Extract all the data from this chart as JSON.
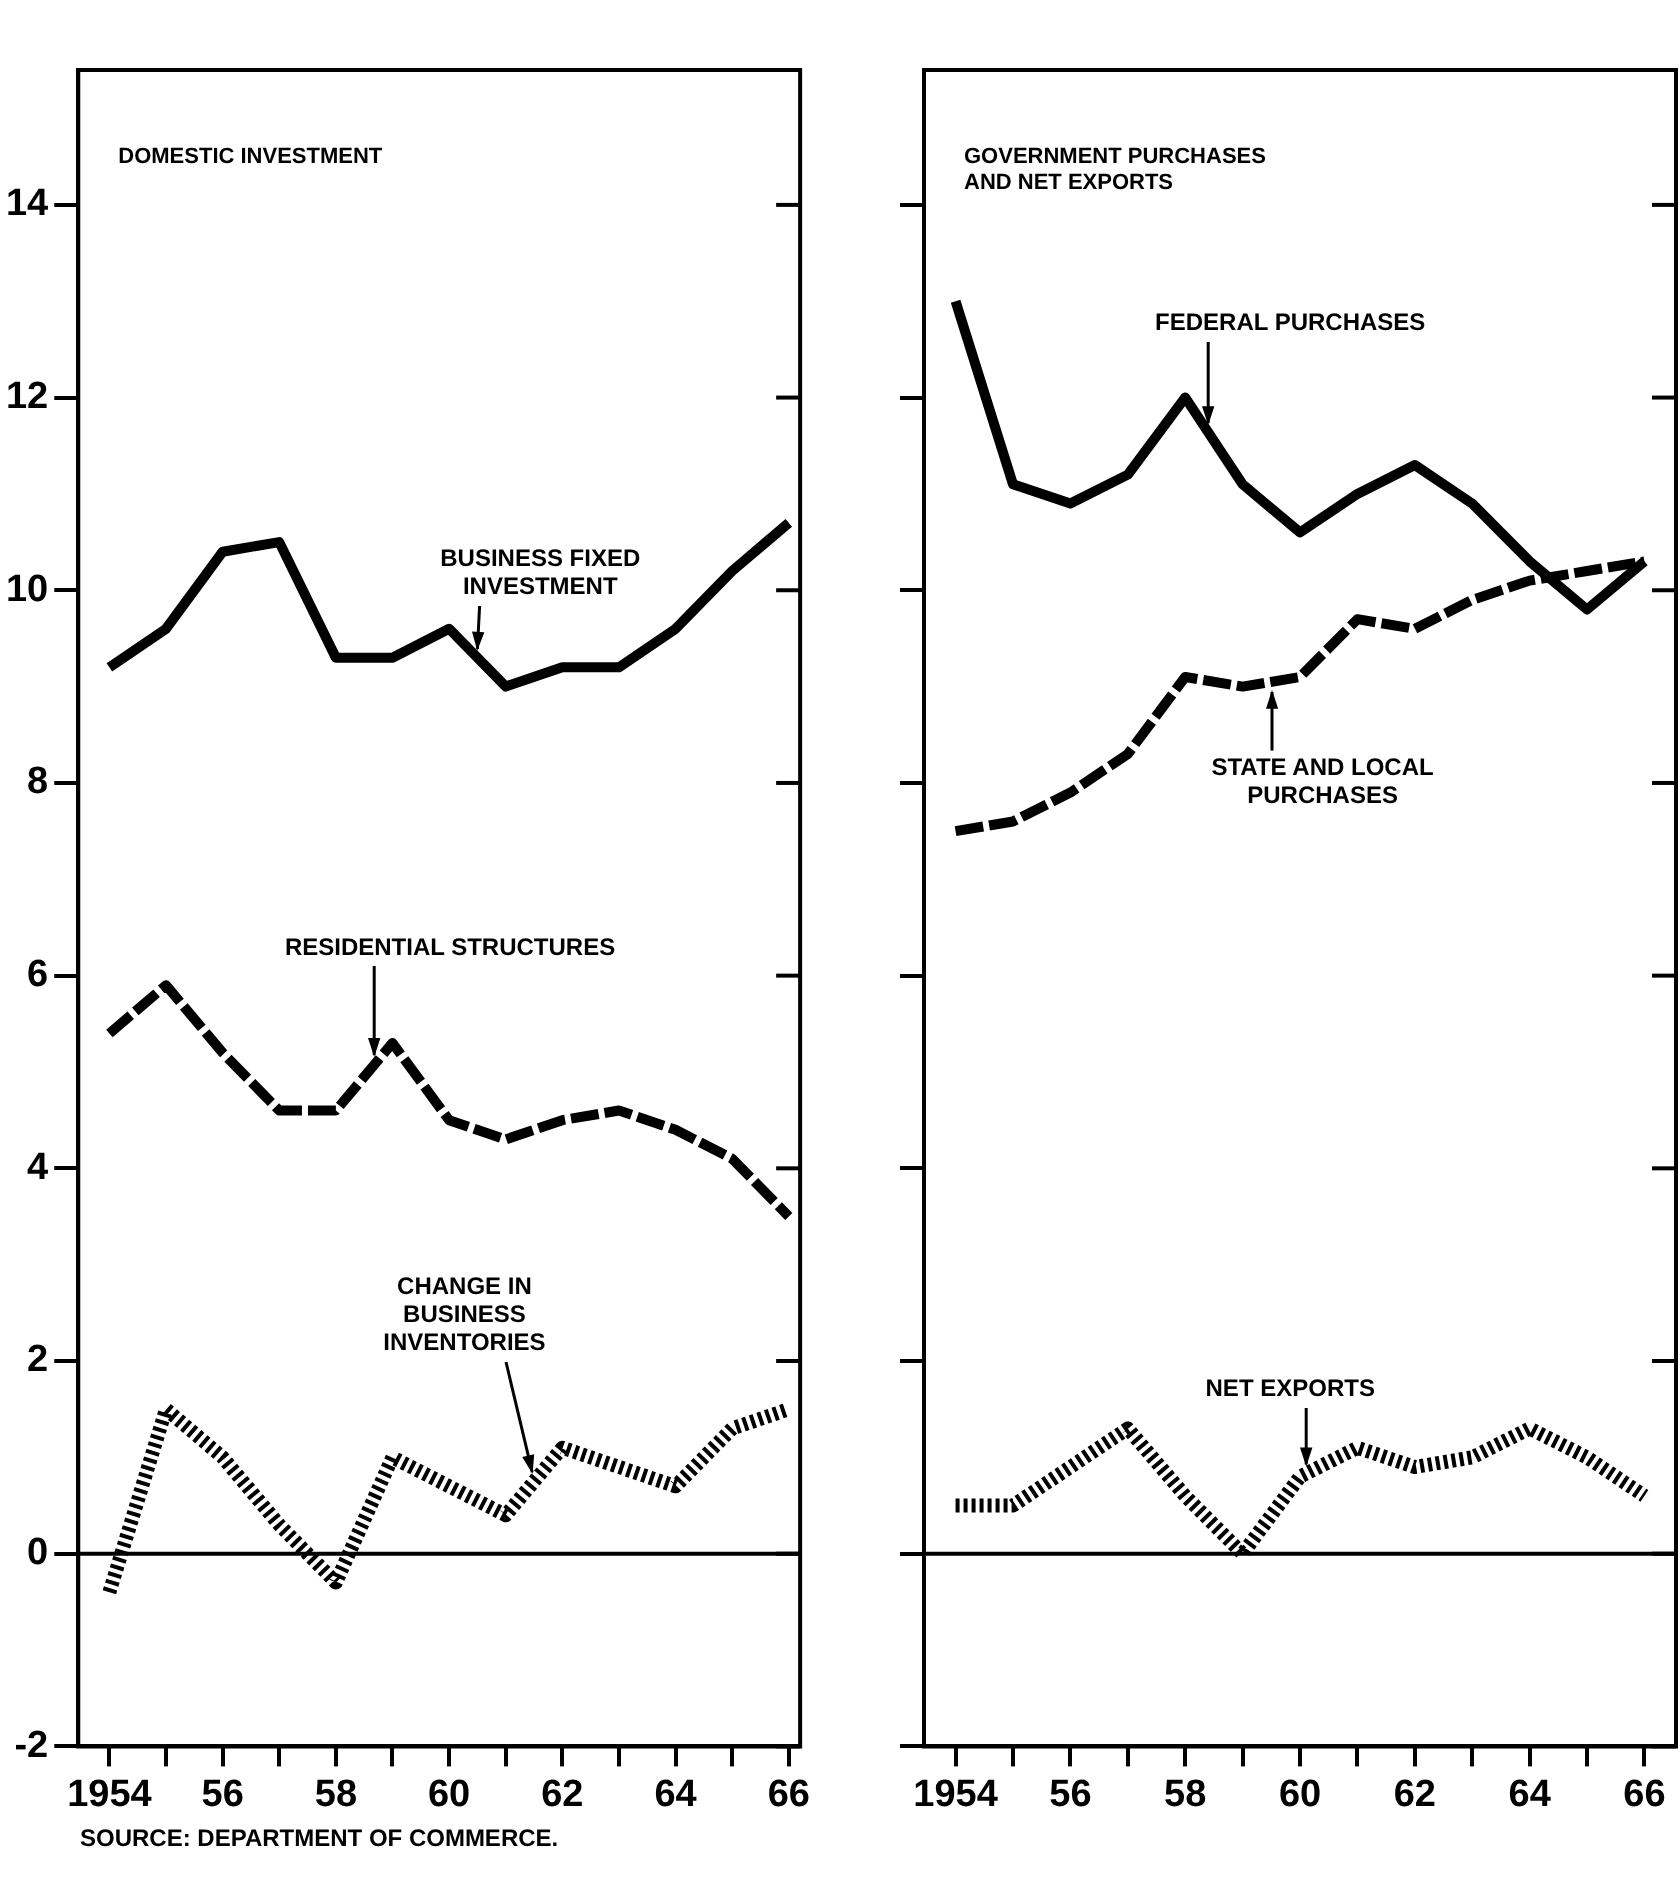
{
  "chart_data": [
    {
      "type": "line",
      "title": "DOMESTIC INVESTMENT",
      "x": [
        1954,
        1955,
        1956,
        1957,
        1958,
        1959,
        1960,
        1961,
        1962,
        1963,
        1964,
        1965,
        1966
      ],
      "series": [
        {
          "name": "BUSINESS FIXED INVESTMENT",
          "color": "#000000",
          "line_style": "solid",
          "values": [
            9.2,
            9.6,
            10.4,
            10.5,
            9.3,
            9.3,
            9.6,
            9.0,
            9.2,
            9.2,
            9.6,
            10.2,
            10.7
          ]
        },
        {
          "name": "RESIDENTIAL STRUCTURES",
          "color": "#000000",
          "line_style": "dashed",
          "values": [
            5.4,
            5.9,
            5.2,
            4.6,
            4.6,
            5.3,
            4.5,
            4.3,
            4.5,
            4.6,
            4.4,
            4.1,
            3.5
          ]
        },
        {
          "name": "CHANGE IN BUSINESS INVENTORIES",
          "color": "#000000",
          "line_style": "dotted",
          "values": [
            -0.4,
            1.5,
            1.0,
            0.3,
            -0.3,
            1.0,
            0.7,
            0.4,
            1.1,
            0.9,
            0.7,
            1.3,
            1.5
          ]
        }
      ],
      "xlim": [
        1953.45,
        1966.2
      ],
      "xticks": [
        {
          "value": 1954,
          "label": "1954"
        },
        {
          "value": 1955,
          "label": null
        },
        {
          "value": 1956,
          "label": "56"
        },
        {
          "value": 1957,
          "label": null
        },
        {
          "value": 1958,
          "label": "58"
        },
        {
          "value": 1959,
          "label": null
        },
        {
          "value": 1960,
          "label": "60"
        },
        {
          "value": 1961,
          "label": null
        },
        {
          "value": 1962,
          "label": "62"
        },
        {
          "value": 1963,
          "label": null
        },
        {
          "value": 1964,
          "label": "64"
        },
        {
          "value": 1965,
          "label": null
        },
        {
          "value": 1966,
          "label": "66"
        }
      ],
      "ylim": [
        -2,
        15.4
      ],
      "yticks": [
        -2,
        0,
        2,
        4,
        6,
        8,
        10,
        12,
        14
      ],
      "ref_lines": [
        {
          "axis": "y",
          "value": 0,
          "color": "#000000"
        }
      ],
      "marker": "none",
      "grid": false,
      "legend": false,
      "annotations": [
        "SOURCE: DEPARTMENT OF COMMERCE."
      ]
    },
    {
      "type": "line",
      "title": "GOVERNMENT PURCHASES AND NET EXPORTS",
      "x": [
        1954,
        1955,
        1956,
        1957,
        1958,
        1959,
        1960,
        1961,
        1962,
        1963,
        1964,
        1965,
        1966
      ],
      "series": [
        {
          "name": "FEDERAL PURCHASES",
          "color": "#000000",
          "line_style": "solid",
          "values": [
            13.0,
            11.1,
            10.9,
            11.2,
            12.0,
            11.1,
            10.6,
            11.0,
            11.3,
            10.9,
            10.3,
            9.8,
            10.3
          ]
        },
        {
          "name": "STATE AND LOCAL PURCHASES",
          "color": "#000000",
          "line_style": "dashed",
          "values": [
            7.5,
            7.6,
            7.9,
            8.3,
            9.1,
            9.0,
            9.1,
            9.7,
            9.6,
            9.9,
            10.1,
            10.2,
            10.3
          ]
        },
        {
          "name": "NET EXPORTS",
          "color": "#000000",
          "line_style": "dotted",
          "values": [
            0.5,
            0.5,
            0.9,
            1.3,
            0.6,
            0.0,
            0.8,
            1.1,
            0.9,
            1.0,
            1.3,
            1.0,
            0.6
          ]
        }
      ],
      "xlim": [
        1953.45,
        1966.55
      ],
      "xticks": [
        {
          "value": 1954,
          "label": "1954"
        },
        {
          "value": 1955,
          "label": null
        },
        {
          "value": 1956,
          "label": "56"
        },
        {
          "value": 1957,
          "label": null
        },
        {
          "value": 1958,
          "label": "58"
        },
        {
          "value": 1959,
          "label": null
        },
        {
          "value": 1960,
          "label": "60"
        },
        {
          "value": 1961,
          "label": null
        },
        {
          "value": 1962,
          "label": "62"
        },
        {
          "value": 1963,
          "label": null
        },
        {
          "value": 1964,
          "label": "64"
        },
        {
          "value": 1965,
          "label": null
        },
        {
          "value": 1966,
          "label": "66"
        }
      ],
      "ylim": [
        -2,
        15.4
      ],
      "yticks": [
        -2,
        0,
        2,
        4,
        6,
        8,
        10,
        12,
        14
      ],
      "tick_labels": "x",
      "ref_lines": [
        {
          "axis": "y",
          "value": 0,
          "color": "#000000"
        }
      ],
      "marker": "none",
      "grid": false,
      "legend": false
    }
  ]
}
